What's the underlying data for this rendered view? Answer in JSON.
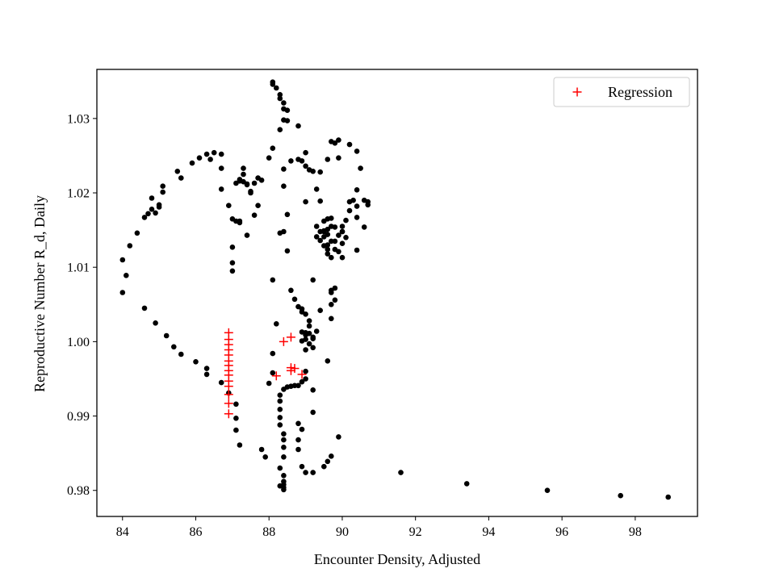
{
  "chart_data": {
    "type": "scatter",
    "title": "",
    "xlabel": "Encounter Density, Adjusted",
    "ylabel": "Reproductive Number R_d, Daily",
    "xlim": [
      83.3,
      99.7
    ],
    "ylim": [
      0.9765,
      1.0366
    ],
    "xticks": [
      84,
      86,
      88,
      90,
      92,
      94,
      96,
      98
    ],
    "yticks": [
      0.98,
      0.99,
      1.0,
      1.01,
      1.02,
      1.03
    ],
    "ytick_labels": [
      "0.98",
      "0.99",
      "1.00",
      "1.01",
      "1.02",
      "1.03"
    ],
    "grid": false,
    "legend": {
      "position": "top-right",
      "entries": [
        "Regression"
      ]
    },
    "series": [
      {
        "marker": "circle",
        "color": "#000000",
        "points": [
          [
            84.0,
            1.0066
          ],
          [
            84.0,
            1.011
          ],
          [
            84.1,
            1.0089
          ],
          [
            84.2,
            1.0129
          ],
          [
            84.4,
            1.0146
          ],
          [
            84.6,
            1.0167
          ],
          [
            84.7,
            1.0172
          ],
          [
            84.8,
            1.0178
          ],
          [
            84.8,
            1.0193
          ],
          [
            84.9,
            1.0173
          ],
          [
            85.0,
            1.0184
          ],
          [
            85.0,
            1.0181
          ],
          [
            85.1,
            1.0209
          ],
          [
            85.1,
            1.0201
          ],
          [
            85.5,
            1.0229
          ],
          [
            85.6,
            1.022
          ],
          [
            85.9,
            1.024
          ],
          [
            86.1,
            1.0247
          ],
          [
            86.3,
            1.0252
          ],
          [
            86.4,
            1.0245
          ],
          [
            86.5,
            1.0254
          ],
          [
            86.7,
            1.0252
          ],
          [
            86.7,
            1.0233
          ],
          [
            86.7,
            1.0205
          ],
          [
            86.9,
            1.0183
          ],
          [
            87.0,
            1.0165
          ],
          [
            87.1,
            1.0162
          ],
          [
            87.2,
            1.016
          ],
          [
            87.2,
            1.0162
          ],
          [
            87.4,
            1.0143
          ],
          [
            87.6,
            1.017
          ],
          [
            87.7,
            1.0183
          ],
          [
            87.5,
            1.0202
          ],
          [
            87.4,
            1.0212
          ],
          [
            87.3,
            1.0233
          ],
          [
            87.3,
            1.0225
          ],
          [
            87.2,
            1.0216
          ],
          [
            87.4,
            1.0211
          ],
          [
            87.5,
            1.02
          ],
          [
            87.6,
            1.0213
          ],
          [
            87.7,
            1.022
          ],
          [
            87.8,
            1.0217
          ],
          [
            87.3,
            1.0215
          ],
          [
            87.2,
            1.0218
          ],
          [
            87.1,
            1.0213
          ],
          [
            87.0,
            1.0127
          ],
          [
            87.0,
            1.0106
          ],
          [
            87.0,
            1.0095
          ],
          [
            88.0,
            1.0247
          ],
          [
            88.1,
            1.026
          ],
          [
            88.3,
            1.0285
          ],
          [
            88.4,
            1.0298
          ],
          [
            88.5,
            1.0311
          ],
          [
            88.5,
            1.0297
          ],
          [
            88.4,
            1.0313
          ],
          [
            88.3,
            1.0327
          ],
          [
            88.2,
            1.0341
          ],
          [
            88.1,
            1.0346
          ],
          [
            88.1,
            1.0349
          ],
          [
            88.3,
            1.0332
          ],
          [
            88.4,
            1.0321
          ],
          [
            88.6,
            1.0243
          ],
          [
            88.8,
            1.0245
          ],
          [
            88.9,
            1.0243
          ],
          [
            89.0,
            1.0236
          ],
          [
            89.1,
            1.0231
          ],
          [
            89.2,
            1.0229
          ],
          [
            89.4,
            1.0228
          ],
          [
            89.0,
            1.0254
          ],
          [
            88.8,
            1.029
          ],
          [
            88.4,
            1.0232
          ],
          [
            88.4,
            1.0209
          ],
          [
            88.5,
            1.0171
          ],
          [
            88.4,
            1.0148
          ],
          [
            88.3,
            1.0146
          ],
          [
            88.5,
            1.0122
          ],
          [
            88.1,
            1.0083
          ],
          [
            88.6,
            1.0069
          ],
          [
            88.7,
            1.0057
          ],
          [
            88.8,
            1.0047
          ],
          [
            88.9,
            1.0044
          ],
          [
            88.9,
            1.004
          ],
          [
            89.0,
            1.0037
          ],
          [
            89.1,
            1.0028
          ],
          [
            89.1,
            1.0021
          ],
          [
            89.0,
            1.0003
          ],
          [
            89.1,
            0.9997
          ],
          [
            88.9,
            1.0001
          ],
          [
            89.0,
            0.9989
          ],
          [
            89.2,
            1.0006
          ],
          [
            89.2,
            0.9992
          ],
          [
            89.3,
            1.0014
          ],
          [
            89.0,
            1.0009
          ],
          [
            88.9,
            1.0013
          ],
          [
            89.0,
            1.0012
          ],
          [
            89.1,
            1.0011
          ],
          [
            89.2,
            1.0004
          ],
          [
            89.6,
            0.9974
          ],
          [
            89.4,
            1.0042
          ],
          [
            89.7,
            1.0031
          ],
          [
            89.2,
            1.0083
          ],
          [
            89.7,
            1.005
          ],
          [
            89.8,
            1.0056
          ],
          [
            89.7,
            1.0066
          ],
          [
            89.7,
            1.0069
          ],
          [
            89.8,
            1.0072
          ],
          [
            88.2,
            1.0024
          ],
          [
            88.1,
            0.9984
          ],
          [
            88.0,
            0.9944
          ],
          [
            88.1,
            0.9958
          ],
          [
            89.0,
            0.996
          ],
          [
            89.0,
            0.995
          ],
          [
            88.9,
            0.9946
          ],
          [
            88.8,
            0.9941
          ],
          [
            88.7,
            0.9941
          ],
          [
            88.6,
            0.994
          ],
          [
            88.5,
            0.9939
          ],
          [
            88.4,
            0.9936
          ],
          [
            88.3,
            0.9928
          ],
          [
            88.3,
            0.992
          ],
          [
            88.3,
            0.9909
          ],
          [
            88.3,
            0.9898
          ],
          [
            88.3,
            0.9888
          ],
          [
            88.4,
            0.9876
          ],
          [
            88.4,
            0.9868
          ],
          [
            88.4,
            0.9858
          ],
          [
            88.4,
            0.9845
          ],
          [
            88.3,
            0.983
          ],
          [
            88.4,
            0.982
          ],
          [
            88.4,
            0.9812
          ],
          [
            88.4,
            0.9808
          ],
          [
            88.4,
            0.9804
          ],
          [
            88.4,
            0.9801
          ],
          [
            88.3,
            0.9806
          ],
          [
            89.2,
            0.9935
          ],
          [
            89.2,
            0.9905
          ],
          [
            88.8,
            0.989
          ],
          [
            88.9,
            0.9882
          ],
          [
            88.8,
            0.9868
          ],
          [
            88.8,
            0.9855
          ],
          [
            88.9,
            0.9832
          ],
          [
            89.0,
            0.9824
          ],
          [
            89.2,
            0.9824
          ],
          [
            89.5,
            0.9832
          ],
          [
            89.6,
            0.9839
          ],
          [
            89.7,
            0.9846
          ],
          [
            89.9,
            0.9872
          ],
          [
            87.9,
            0.9845
          ],
          [
            87.8,
            0.9855
          ],
          [
            86.9,
            0.9931
          ],
          [
            87.1,
            0.9916
          ],
          [
            87.1,
            0.9897
          ],
          [
            87.1,
            0.9881
          ],
          [
            87.2,
            0.9861
          ],
          [
            86.7,
            0.9945
          ],
          [
            86.3,
            0.9956
          ],
          [
            86.3,
            0.9964
          ],
          [
            86.0,
            0.9973
          ],
          [
            85.6,
            0.9983
          ],
          [
            85.4,
            0.9993
          ],
          [
            85.2,
            1.0008
          ],
          [
            84.9,
            1.0025
          ],
          [
            84.6,
            1.0045
          ],
          [
            89.3,
            1.0205
          ],
          [
            89.4,
            1.0189
          ],
          [
            89.5,
            1.0162
          ],
          [
            89.7,
            1.0166
          ],
          [
            89.8,
            1.0154
          ],
          [
            89.6,
            1.0151
          ],
          [
            89.5,
            1.0149
          ],
          [
            89.6,
            1.0144
          ],
          [
            89.3,
            1.0141
          ],
          [
            89.4,
            1.0136
          ],
          [
            89.5,
            1.0129
          ],
          [
            89.6,
            1.0124
          ],
          [
            89.6,
            1.0118
          ],
          [
            89.7,
            1.0113
          ],
          [
            89.8,
            1.0124
          ],
          [
            89.8,
            1.0135
          ],
          [
            89.9,
            1.0143
          ],
          [
            90.0,
            1.0148
          ],
          [
            90.1,
            1.014
          ],
          [
            90.0,
            1.0155
          ],
          [
            90.1,
            1.0163
          ],
          [
            90.2,
            1.0176
          ],
          [
            90.4,
            1.0182
          ],
          [
            90.4,
            1.0167
          ],
          [
            90.2,
            1.0188
          ],
          [
            90.3,
            1.019
          ],
          [
            90.4,
            1.0204
          ],
          [
            90.5,
            1.0233
          ],
          [
            90.4,
            1.0256
          ],
          [
            90.2,
            1.0265
          ],
          [
            89.9,
            1.0271
          ],
          [
            89.8,
            1.0267
          ],
          [
            89.9,
            1.0247
          ],
          [
            89.7,
            1.0269
          ],
          [
            89.6,
            1.0245
          ],
          [
            89.6,
            1.0165
          ],
          [
            89.7,
            1.0155
          ],
          [
            89.5,
            1.0148
          ],
          [
            89.5,
            1.0141
          ],
          [
            89.7,
            1.0135
          ],
          [
            89.6,
            1.013
          ],
          [
            90.0,
            1.0148
          ],
          [
            90.0,
            1.0132
          ],
          [
            89.9,
            1.0121
          ],
          [
            90.0,
            1.0113
          ],
          [
            90.4,
            1.0123
          ],
          [
            90.6,
            1.0154
          ],
          [
            90.7,
            1.0184
          ],
          [
            90.6,
            1.019
          ],
          [
            90.7,
            1.0188
          ],
          [
            89.0,
            1.0188
          ],
          [
            89.3,
            1.0155
          ],
          [
            89.4,
            1.0148
          ],
          [
            91.6,
            0.9824
          ],
          [
            93.4,
            0.9809
          ],
          [
            95.6,
            0.98
          ],
          [
            97.6,
            0.9793
          ],
          [
            98.9,
            0.9791
          ]
        ]
      },
      {
        "name": "Regression",
        "marker": "plus",
        "color": "#ff0000",
        "points": [
          [
            86.9,
            1.0012
          ],
          [
            86.9,
            1.0003
          ],
          [
            86.9,
            0.9996
          ],
          [
            86.9,
            0.9989
          ],
          [
            86.9,
            0.9982
          ],
          [
            86.9,
            0.9974
          ],
          [
            86.9,
            0.9968
          ],
          [
            86.9,
            0.9961
          ],
          [
            86.9,
            0.9955
          ],
          [
            86.9,
            0.9947
          ],
          [
            86.9,
            0.994
          ],
          [
            86.9,
            0.9929
          ],
          [
            86.9,
            0.9917
          ],
          [
            86.9,
            0.9903
          ],
          [
            88.2,
            0.9954
          ],
          [
            88.4,
            1.0
          ],
          [
            88.6,
            1.0006
          ],
          [
            88.6,
            0.9965
          ],
          [
            88.6,
            0.9961
          ],
          [
            88.7,
            0.9964
          ],
          [
            88.9,
            0.9956
          ]
        ]
      }
    ]
  }
}
